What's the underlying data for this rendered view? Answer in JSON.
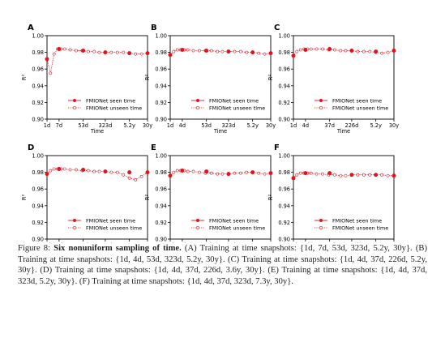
{
  "chart_data": [
    {
      "panel": "A",
      "type": "line",
      "x_ticks": [
        "1d",
        "7d",
        "53d",
        "323d",
        "5.2y",
        "30y"
      ],
      "ylabel": "R²",
      "xlabel": "Time",
      "ylim": [
        0.9,
        1.0
      ],
      "y_ticks": [
        "0.90",
        "0.92",
        "0.94",
        "0.96",
        "0.98",
        "1.00"
      ],
      "legend": [
        "FMIONet seen time",
        "FMIONet unseen time"
      ],
      "legend_position": "lower-right",
      "seen": [
        [
          "1d",
          0.972
        ],
        [
          "7d",
          0.984
        ],
        [
          "53d",
          0.982
        ],
        [
          "323d",
          0.98
        ],
        [
          "5.2y",
          0.979
        ],
        [
          "30y",
          0.979
        ]
      ],
      "unseen": [
        0.972,
        0.955,
        0.978,
        0.984,
        0.984,
        0.984,
        0.983,
        0.982,
        0.982,
        0.981,
        0.981,
        0.98,
        0.98,
        0.98,
        0.98,
        0.98,
        0.979,
        0.978,
        0.978,
        0.979
      ]
    },
    {
      "panel": "B",
      "type": "line",
      "x_ticks": [
        "1d",
        "4d",
        "53d",
        "323d",
        "5.2y",
        "30y"
      ],
      "ylabel": "R²",
      "xlabel": "Time",
      "ylim": [
        0.9,
        1.0
      ],
      "y_ticks": [
        "0.90",
        "0.92",
        "0.94",
        "0.96",
        "0.98",
        "1.00"
      ],
      "legend": [
        "FMIONet seen time",
        "FMIONet unseen time"
      ],
      "legend_position": "lower-right",
      "seen": [
        [
          "1d",
          0.977
        ],
        [
          "4d",
          0.983
        ],
        [
          "53d",
          0.982
        ],
        [
          "323d",
          0.981
        ],
        [
          "5.2y",
          0.98
        ],
        [
          "30y",
          0.979
        ]
      ],
      "unseen": [
        0.977,
        0.981,
        0.983,
        0.983,
        0.983,
        0.983,
        0.982,
        0.982,
        0.982,
        0.982,
        0.981,
        0.981,
        0.981,
        0.981,
        0.981,
        0.98,
        0.98,
        0.979,
        0.978,
        0.979
      ]
    },
    {
      "panel": "C",
      "type": "line",
      "x_ticks": [
        "1d",
        "4d",
        "37d",
        "226d",
        "5.2y",
        "30y"
      ],
      "ylabel": "R²",
      "xlabel": "Time",
      "ylim": [
        0.9,
        1.0
      ],
      "y_ticks": [
        "0.90",
        "0.92",
        "0.94",
        "0.96",
        "0.98",
        "1.00"
      ],
      "legend": [
        "FMIONet seen time",
        "FMIONet unseen time"
      ],
      "legend_position": "lower-right",
      "seen": [
        [
          "1d",
          0.976
        ],
        [
          "4d",
          0.983
        ],
        [
          "37d",
          0.984
        ],
        [
          "226d",
          0.982
        ],
        [
          "5.2y",
          0.981
        ],
        [
          "30y",
          0.982
        ]
      ],
      "unseen": [
        0.976,
        0.981,
        0.983,
        0.984,
        0.984,
        0.984,
        0.984,
        0.984,
        0.983,
        0.983,
        0.982,
        0.982,
        0.982,
        0.981,
        0.981,
        0.981,
        0.98,
        0.979,
        0.98,
        0.982
      ]
    },
    {
      "panel": "D",
      "type": "line",
      "x_ticks": [
        "1d",
        "4d",
        "37d",
        "226d",
        "3.6y",
        "30y"
      ],
      "ylabel": "R²",
      "xlabel": "Time",
      "ylim": [
        0.9,
        1.0
      ],
      "y_ticks": [
        "0.90",
        "0.92",
        "0.94",
        "0.96",
        "0.98",
        "1.00"
      ],
      "legend": [
        "FMIONet seen time",
        "FMIONet unseen time"
      ],
      "legend_position": "lower-right",
      "seen": [
        [
          "1d",
          0.978
        ],
        [
          "4d",
          0.984
        ],
        [
          "37d",
          0.983
        ],
        [
          "226d",
          0.981
        ],
        [
          "3.6y",
          0.98
        ],
        [
          "30y",
          0.98
        ]
      ],
      "unseen": [
        0.978,
        0.982,
        0.984,
        0.984,
        0.984,
        0.984,
        0.983,
        0.983,
        0.982,
        0.982,
        0.981,
        0.981,
        0.981,
        0.98,
        0.98,
        0.977,
        0.973,
        0.971,
        0.975,
        0.98
      ]
    },
    {
      "panel": "E",
      "type": "line",
      "x_ticks": [
        "1d",
        "4d",
        "37d",
        "323d",
        "5.2y",
        "30y"
      ],
      "ylabel": "R²",
      "xlabel": "Time",
      "ylim": [
        0.9,
        1.0
      ],
      "y_ticks": [
        "0.90",
        "0.92",
        "0.94",
        "0.96",
        "0.98",
        "1.00"
      ],
      "legend": [
        "FMIONet seen time",
        "FMIONet unseen time"
      ],
      "legend_position": "lower-right",
      "seen": [
        [
          "1d",
          0.976
        ],
        [
          "4d",
          0.982
        ],
        [
          "37d",
          0.981
        ],
        [
          "323d",
          0.978
        ],
        [
          "5.2y",
          0.98
        ],
        [
          "30y",
          0.979
        ]
      ],
      "unseen": [
        0.976,
        0.98,
        0.982,
        0.982,
        0.982,
        0.981,
        0.981,
        0.98,
        0.979,
        0.979,
        0.978,
        0.978,
        0.978,
        0.979,
        0.979,
        0.98,
        0.98,
        0.979,
        0.978,
        0.979
      ]
    },
    {
      "panel": "F",
      "type": "line",
      "x_ticks": [
        "1d",
        "4d",
        "37d",
        "323d",
        "7.3y",
        "30y"
      ],
      "ylabel": "R²",
      "xlabel": "Time",
      "ylim": [
        0.9,
        1.0
      ],
      "y_ticks": [
        "0.90",
        "0.92",
        "0.94",
        "0.96",
        "0.98",
        "1.00"
      ],
      "legend": [
        "FMIONet seen time",
        "FMIONet unseen time"
      ],
      "legend_position": "lower-right",
      "seen": [
        [
          "1d",
          0.973
        ],
        [
          "4d",
          0.979
        ],
        [
          "37d",
          0.979
        ],
        [
          "323d",
          0.977
        ],
        [
          "7.3y",
          0.977
        ],
        [
          "30y",
          0.976
        ]
      ],
      "unseen": [
        0.973,
        0.977,
        0.979,
        0.979,
        0.979,
        0.979,
        0.978,
        0.978,
        0.977,
        0.977,
        0.976,
        0.976,
        0.977,
        0.977,
        0.977,
        0.977,
        0.977,
        0.977,
        0.976,
        0.976
      ]
    }
  ],
  "caption": {
    "figure_label": "Figure 8:",
    "title": "Six nonuniform sampling of time.",
    "body": " (A) Training at time snapshots: {1d, 7d, 53d, 323d, 5.2y, 30y}. (B) Training at time snapshots: {1d, 4d, 53d, 323d, 5.2y, 30y}. (C) Training at time snapshots: {1d, 4d, 37d, 226d, 5.2y, 30y}. (D) Training at time snapshots: {1d, 4d, 37d, 226d, 3.6y, 30y}. (E) Training at time snapshots: {1d, 4d, 37d, 323d, 5.2y, 30y}. (F) Training at time snapshots: {1d, 4d, 37d, 323d, 7.3y, 30y}."
  },
  "colors": {
    "series": "#e0141e",
    "axis": "#000000"
  }
}
